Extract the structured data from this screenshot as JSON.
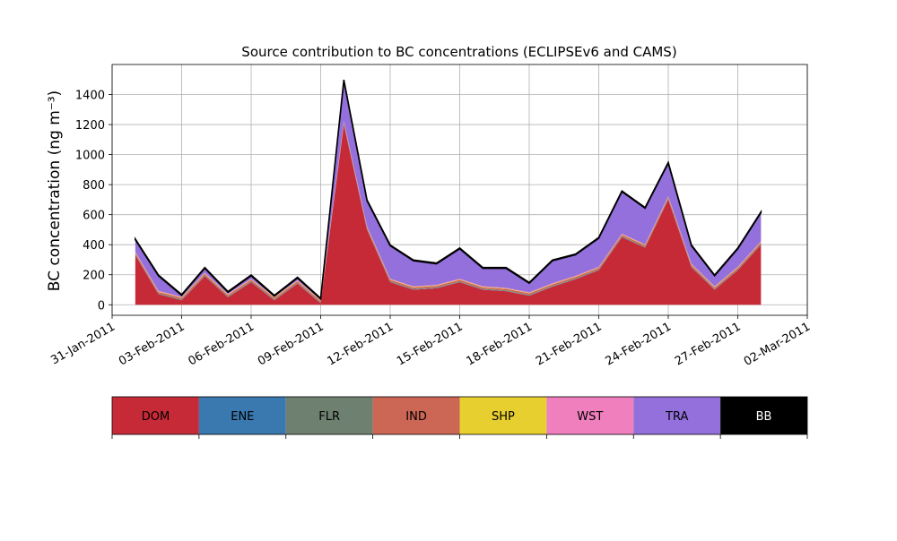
{
  "chart_data": {
    "type": "stacked-area",
    "title": "Source contribution to BC concentrations (ECLIPSEv6 and CAMS)",
    "ylabel": "BC concentration (ng m⁻³)",
    "x": [
      "2011-02-01",
      "2011-02-02",
      "2011-02-03",
      "2011-02-04",
      "2011-02-05",
      "2011-02-06",
      "2011-02-07",
      "2011-02-08",
      "2011-02-09",
      "2011-02-10",
      "2011-02-11",
      "2011-02-12",
      "2011-02-13",
      "2011-02-14",
      "2011-02-15",
      "2011-02-16",
      "2011-02-17",
      "2011-02-18",
      "2011-02-19",
      "2011-02-20",
      "2011-02-21",
      "2011-02-22",
      "2011-02-23",
      "2011-02-24",
      "2011-02-25",
      "2011-02-26",
      "2011-02-27",
      "2011-02-28"
    ],
    "series": [
      {
        "name": "DOM",
        "color": "#c62a37",
        "values": [
          330,
          70,
          30,
          190,
          50,
          150,
          30,
          140,
          10,
          1200,
          500,
          150,
          100,
          110,
          150,
          100,
          90,
          60,
          120,
          170,
          230,
          450,
          380,
          700,
          250,
          100,
          230,
          400
        ]
      },
      {
        "name": "ENE",
        "color": "#3a78b0",
        "values": [
          2,
          2,
          2,
          2,
          2,
          2,
          2,
          2,
          2,
          2,
          2,
          2,
          2,
          2,
          2,
          2,
          2,
          2,
          2,
          2,
          2,
          2,
          2,
          2,
          2,
          2,
          2,
          2
        ]
      },
      {
        "name": "FLR",
        "color": "#6e8070",
        "values": [
          4,
          4,
          4,
          4,
          4,
          4,
          4,
          4,
          4,
          4,
          4,
          4,
          4,
          4,
          4,
          4,
          4,
          4,
          4,
          4,
          4,
          4,
          4,
          4,
          4,
          4,
          4,
          4
        ]
      },
      {
        "name": "IND",
        "color": "#cc6655",
        "values": [
          10,
          10,
          10,
          10,
          10,
          10,
          10,
          10,
          10,
          10,
          10,
          10,
          10,
          10,
          10,
          10,
          10,
          10,
          10,
          10,
          10,
          10,
          10,
          10,
          10,
          10,
          10,
          10
        ]
      },
      {
        "name": "SHP",
        "color": "#e8cf30",
        "values": [
          3,
          3,
          3,
          3,
          3,
          3,
          3,
          3,
          3,
          3,
          3,
          3,
          3,
          3,
          3,
          3,
          3,
          3,
          3,
          3,
          3,
          3,
          3,
          3,
          3,
          3,
          3,
          3
        ]
      },
      {
        "name": "WST",
        "color": "#f07fbd",
        "values": [
          4,
          4,
          4,
          4,
          4,
          4,
          4,
          4,
          4,
          4,
          4,
          4,
          4,
          4,
          4,
          4,
          4,
          4,
          4,
          4,
          4,
          4,
          4,
          4,
          4,
          4,
          4,
          4
        ]
      },
      {
        "name": "TRA",
        "color": "#9370db",
        "values": [
          80,
          100,
          10,
          30,
          10,
          20,
          5,
          15,
          5,
          270,
          170,
          220,
          170,
          140,
          200,
          120,
          130,
          60,
          150,
          140,
          190,
          280,
          240,
          220,
          120,
          70,
          120,
          190
        ]
      },
      {
        "name": "BB",
        "color": "#000000",
        "values": [
          5,
          5,
          5,
          5,
          5,
          5,
          5,
          5,
          5,
          5,
          5,
          5,
          5,
          5,
          5,
          5,
          5,
          5,
          5,
          5,
          5,
          5,
          5,
          5,
          5,
          5,
          5,
          5
        ]
      }
    ],
    "xlim": [
      "2011-01-31",
      "2011-03-02"
    ],
    "xticks": [
      {
        "value": "2011-01-31",
        "label": "31-Jan-2011"
      },
      {
        "value": "2011-02-03",
        "label": "03-Feb-2011"
      },
      {
        "value": "2011-02-06",
        "label": "06-Feb-2011"
      },
      {
        "value": "2011-02-09",
        "label": "09-Feb-2011"
      },
      {
        "value": "2011-02-12",
        "label": "12-Feb-2011"
      },
      {
        "value": "2011-02-15",
        "label": "15-Feb-2011"
      },
      {
        "value": "2011-02-18",
        "label": "18-Feb-2011"
      },
      {
        "value": "2011-02-21",
        "label": "21-Feb-2011"
      },
      {
        "value": "2011-02-24",
        "label": "24-Feb-2011"
      },
      {
        "value": "2011-02-27",
        "label": "27-Feb-2011"
      },
      {
        "value": "2011-03-02",
        "label": "02-Mar-2011"
      }
    ],
    "ylim": [
      -70,
      1600
    ],
    "yticks": [
      0,
      200,
      400,
      600,
      800,
      1000,
      1200,
      1400
    ],
    "grid": true
  }
}
